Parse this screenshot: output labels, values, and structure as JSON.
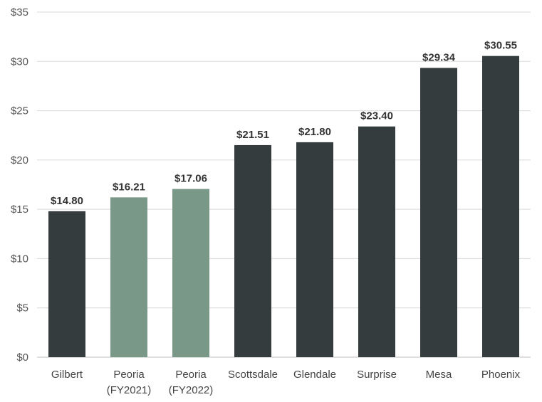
{
  "chart_data": {
    "type": "bar",
    "categories": [
      [
        "Gilbert"
      ],
      [
        "Peoria",
        "(FY2021)"
      ],
      [
        "Peoria",
        "(FY2022)"
      ],
      [
        "Scottsdale"
      ],
      [
        "Glendale"
      ],
      [
        "Surprise"
      ],
      [
        "Mesa"
      ],
      [
        "Phoenix"
      ]
    ],
    "values": [
      14.8,
      16.21,
      17.06,
      21.51,
      21.8,
      23.4,
      29.34,
      30.55
    ],
    "value_labels": [
      "$14.80",
      "$16.21",
      "$17.06",
      "$21.51",
      "$21.80",
      "$23.40",
      "$29.34",
      "$30.55"
    ],
    "bar_colors": [
      "#353c3e",
      "#7a9888",
      "#7a9888",
      "#353c3e",
      "#353c3e",
      "#353c3e",
      "#353c3e",
      "#353c3e"
    ],
    "y_ticks": [
      0,
      5,
      10,
      15,
      20,
      25,
      30,
      35
    ],
    "y_tick_labels": [
      "$0",
      "$5",
      "$10",
      "$15",
      "$20",
      "$25",
      "$30",
      "$35"
    ],
    "ylim": [
      0,
      35
    ],
    "grid": true,
    "legend": "none",
    "title": "",
    "xlabel": "",
    "ylabel": ""
  },
  "colors": {
    "dark_bar": "#353c3e",
    "highlight_bar": "#7a9888",
    "gridline": "#d9d9d9"
  }
}
